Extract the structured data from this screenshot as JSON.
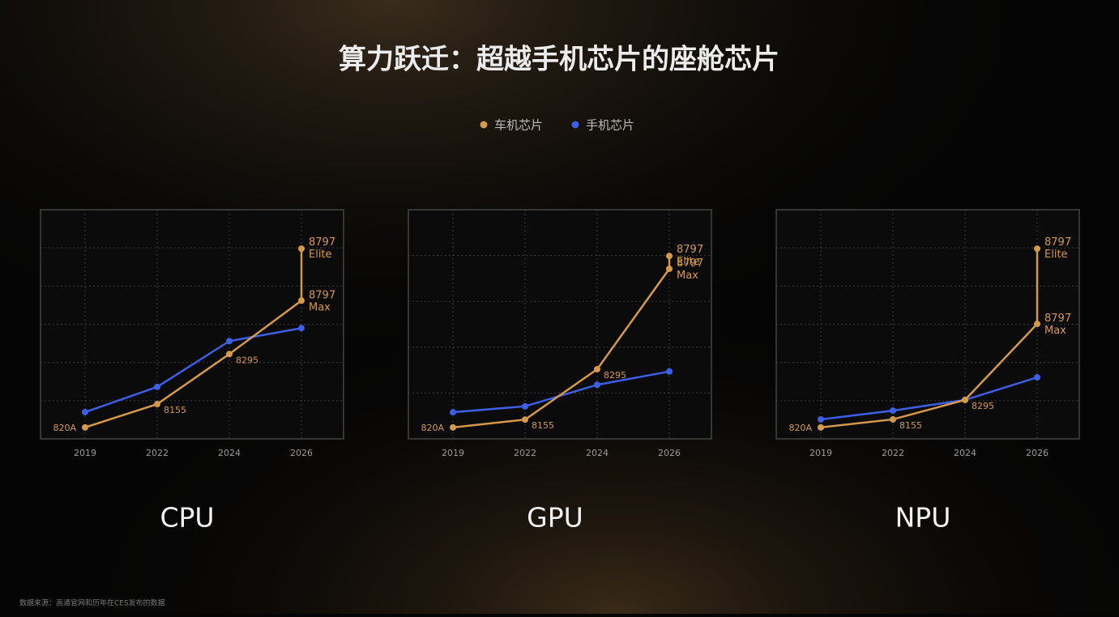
{
  "title": "算力跃迁：超越手机芯片的座舱芯片",
  "legend": [
    {
      "name": "车机芯片",
      "color": "#d4994a"
    },
    {
      "name": "手机芯片",
      "color": "#3d5fe6"
    }
  ],
  "footnote": "数据来源：高通官网和历年在CES发布的数据",
  "chart_data": [
    {
      "type": "line",
      "title": "CPU",
      "categories": [
        "2019",
        "2022",
        "2024",
        "2026"
      ],
      "ylim": [
        0,
        6
      ],
      "yticks": [
        1,
        2,
        3,
        4,
        5
      ],
      "grid": true,
      "series": [
        {
          "values": [
            0.3,
            0.91,
            2.22,
            3.62
          ],
          "point_labels": [
            [
              "820A"
            ],
            [
              "8155"
            ],
            [
              "8295"
            ],
            [
              "8797",
              "Max"
            ]
          ],
          "end_point": {
            "value": 4.98,
            "label": [
              "8797",
              "Elite"
            ]
          }
        },
        {
          "values": [
            0.7,
            1.36,
            2.56,
            2.9
          ]
        }
      ]
    },
    {
      "type": "line",
      "title": "GPU",
      "categories": [
        "2019",
        "2022",
        "2024",
        "2026"
      ],
      "ylim": [
        0,
        5
      ],
      "yticks": [
        1,
        2,
        3,
        4
      ],
      "grid": true,
      "series": [
        {
          "values": [
            0.25,
            0.42,
            1.52,
            3.71
          ],
          "point_labels": [
            [
              "820A"
            ],
            [
              "8155"
            ],
            [
              "8295"
            ],
            [
              "8797",
              "Max"
            ]
          ],
          "end_point": {
            "value": 3.99,
            "label": [
              "8797",
              "Elite"
            ]
          }
        },
        {
          "values": [
            0.58,
            0.71,
            1.18,
            1.47
          ]
        }
      ]
    },
    {
      "type": "line",
      "title": "NPU",
      "categories": [
        "2019",
        "2022",
        "2024",
        "2026"
      ],
      "ylim": [
        0,
        6
      ],
      "yticks": [
        1,
        2,
        3,
        4,
        5
      ],
      "grid": true,
      "series": [
        {
          "values": [
            0.3,
            0.51,
            1.02,
            3.01
          ],
          "point_labels": [
            [
              "820A"
            ],
            [
              "8155"
            ],
            [
              "8295"
            ],
            [
              "8797",
              "Max"
            ]
          ],
          "end_point": {
            "value": 4.98,
            "label": [
              "8797",
              "Elite"
            ]
          }
        },
        {
          "values": [
            0.51,
            0.74,
            1.02,
            1.61
          ]
        }
      ]
    }
  ]
}
